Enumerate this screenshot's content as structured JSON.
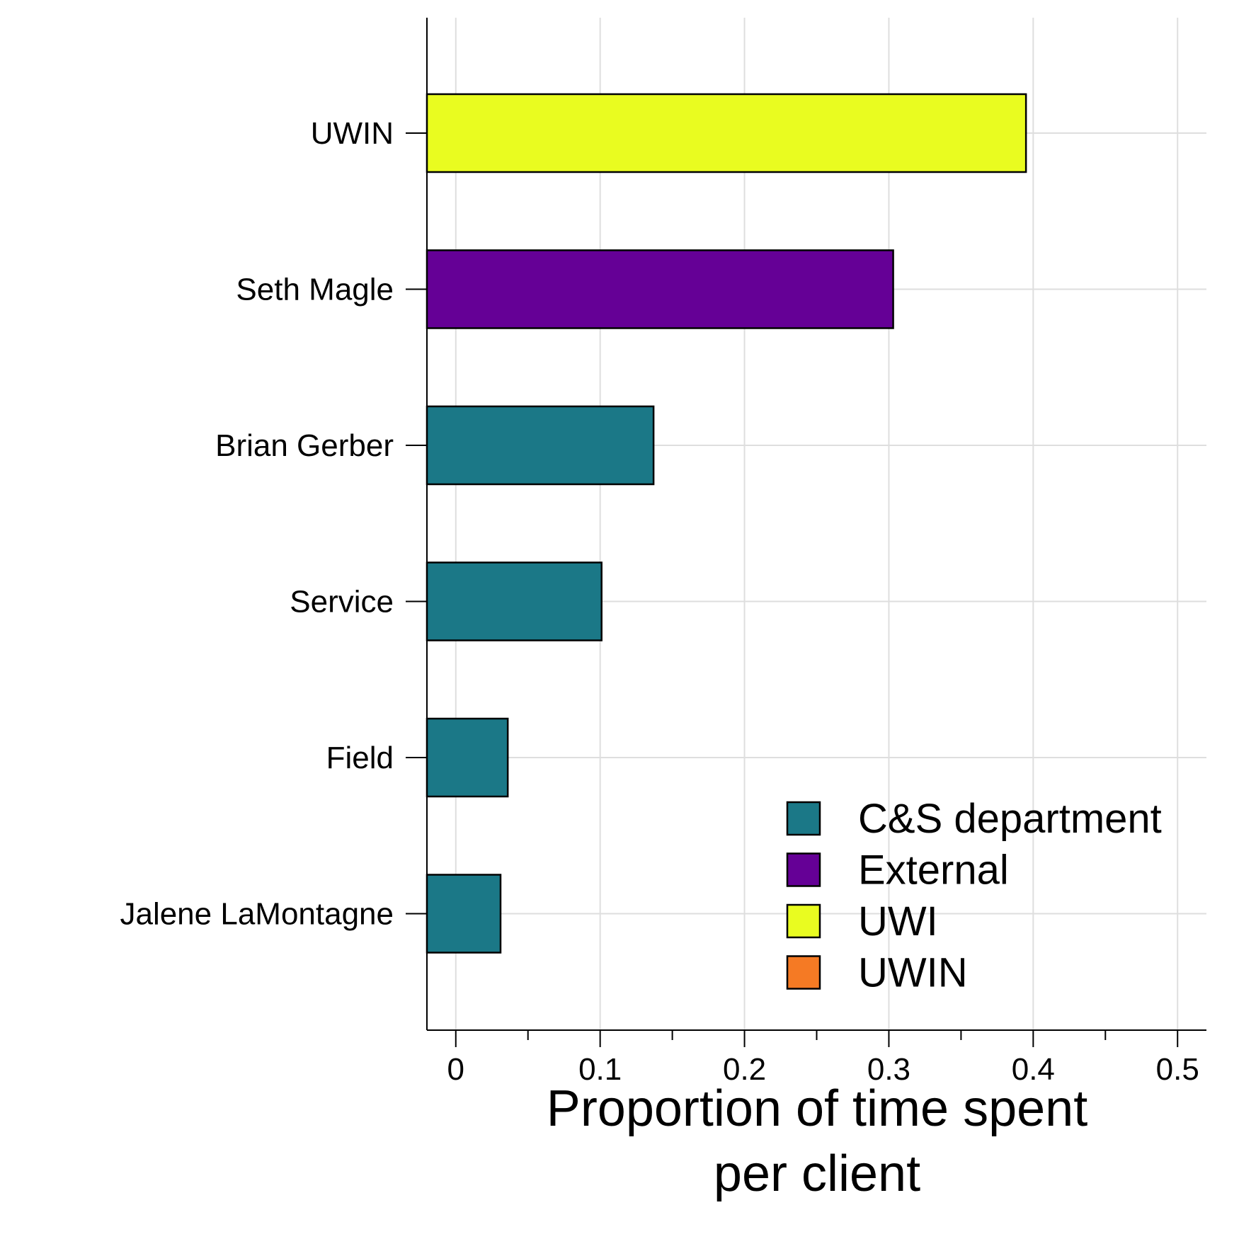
{
  "chart_data": {
    "type": "bar",
    "orientation": "horizontal",
    "categories": [
      "UWIN",
      "Seth Magle",
      "Brian Gerber",
      "Service",
      "Field",
      "Jalene LaMontagne"
    ],
    "values": [
      0.395,
      0.303,
      0.137,
      0.101,
      0.036,
      0.031
    ],
    "groups": [
      "UWI",
      "External",
      "C&S department",
      "C&S department",
      "C&S department",
      "C&S department"
    ],
    "xlabel_lines": [
      "Proportion of time spent",
      "per client"
    ],
    "ylabel": "",
    "xlim": [
      -0.02,
      0.52
    ],
    "xticks": [
      0,
      0.1,
      0.2,
      0.3,
      0.4,
      0.5
    ],
    "xtick_labels": [
      "0",
      "0.1",
      "0.2",
      "0.3",
      "0.4",
      "0.5"
    ],
    "grid": true,
    "legend": {
      "position": "bottom-right",
      "entries": [
        {
          "label": "C&S department",
          "color": "#1b7887"
        },
        {
          "label": "External",
          "color": "#650096"
        },
        {
          "label": "UWI",
          "color": "#e9fc20"
        },
        {
          "label": "UWIN",
          "color": "#f57a24"
        }
      ]
    }
  }
}
